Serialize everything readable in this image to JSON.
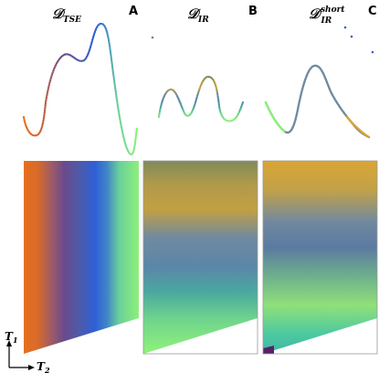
{
  "panels": [
    {
      "id": "A",
      "letter": "A",
      "title_main": "𝒟",
      "title_sub": "TSE",
      "title_sup": ""
    },
    {
      "id": "B",
      "letter": "B",
      "title_main": "𝒟",
      "title_sub": "IR",
      "title_sup": ""
    },
    {
      "id": "C",
      "letter": "C",
      "title_main": "𝒟",
      "title_sub": "IR",
      "title_sup": "short"
    }
  ],
  "axes": {
    "y_main": "T",
    "y_sub": "1",
    "x_main": "T",
    "x_sub": "2"
  },
  "colors": {
    "orange": "#e8701e",
    "purple": "#6a4a8c",
    "blue": "#2f5fd8",
    "green": "#8df07a",
    "teal": "#3fb6a6",
    "gold": "#d9a534",
    "slate": "#5b7aa0"
  }
}
